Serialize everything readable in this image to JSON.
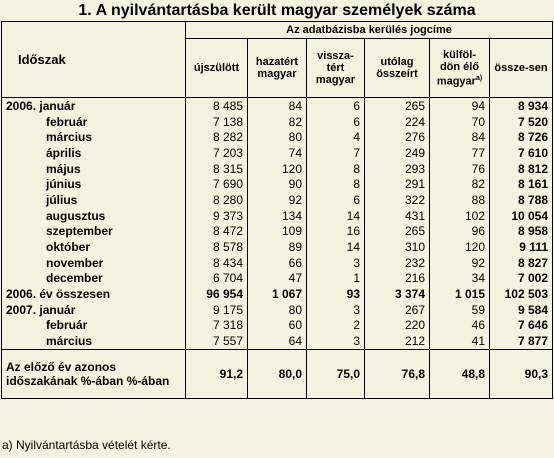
{
  "title": "1. A nyilvántartásba került magyar személyek száma",
  "header": {
    "period": "Időszak",
    "group": "Az adatbázisba kerülés jogcíme",
    "columns": [
      "újszülött",
      "hazatért magyar",
      "vissza-tért magyar",
      "utólag összeírt",
      "külföl-dön élő magyar",
      "össze-sen"
    ],
    "footnote_mark": "a)"
  },
  "rows": [
    {
      "label": "2006. január",
      "cells": [
        "8 485",
        "84",
        "6",
        "265",
        "94",
        "8 934"
      ],
      "indent": false
    },
    {
      "label": "február",
      "cells": [
        "7 138",
        "82",
        "6",
        "224",
        "70",
        "7 520"
      ],
      "indent": true
    },
    {
      "label": "március",
      "cells": [
        "8 282",
        "80",
        "4",
        "276",
        "84",
        "8 726"
      ],
      "indent": true
    },
    {
      "label": "április",
      "cells": [
        "7 203",
        "74",
        "7",
        "249",
        "77",
        "7 610"
      ],
      "indent": true
    },
    {
      "label": "május",
      "cells": [
        "8 315",
        "120",
        "8",
        "293",
        "76",
        "8 812"
      ],
      "indent": true
    },
    {
      "label": "június",
      "cells": [
        "7 690",
        "90",
        "8",
        "291",
        "82",
        "8 161"
      ],
      "indent": true
    },
    {
      "label": "július",
      "cells": [
        "8 280",
        "92",
        "6",
        "322",
        "88",
        "8 788"
      ],
      "indent": true
    },
    {
      "label": "augusztus",
      "cells": [
        "9 373",
        "134",
        "14",
        "431",
        "102",
        "10 054"
      ],
      "indent": true
    },
    {
      "label": "szeptember",
      "cells": [
        "8 472",
        "109",
        "16",
        "265",
        "96",
        "8 958"
      ],
      "indent": true
    },
    {
      "label": "október",
      "cells": [
        "8 578",
        "89",
        "14",
        "310",
        "120",
        "9 111"
      ],
      "indent": true
    },
    {
      "label": "november",
      "cells": [
        "8 434",
        "66",
        "3",
        "232",
        "92",
        "8 827"
      ],
      "indent": true
    },
    {
      "label": "december",
      "cells": [
        "6 704",
        "47",
        "1",
        "216",
        "34",
        "7 002"
      ],
      "indent": true
    }
  ],
  "total_row": {
    "label": "2006. év összesen",
    "cells": [
      "96 954",
      "1 067",
      "93",
      "3 374",
      "1 015",
      "102 503"
    ]
  },
  "rows2007": [
    {
      "label": "2007. január",
      "cells": [
        "9 175",
        "80",
        "3",
        "267",
        "59",
        "9 584"
      ],
      "indent": false
    },
    {
      "label": "február",
      "cells": [
        "7 318",
        "60",
        "2",
        "220",
        "46",
        "7 646"
      ],
      "indent": true
    },
    {
      "label": "március",
      "cells": [
        "7 557",
        "64",
        "3",
        "212",
        "41",
        "7 877"
      ],
      "indent": true
    }
  ],
  "pct_row": {
    "label": "Az előző év azonos időszakának %-ában %-ában",
    "cells": [
      "91,2",
      "80,0",
      "75,0",
      "76,8",
      "48,8",
      "90,3"
    ]
  },
  "footnote": "a) Nyilvántartásba vételét kérte."
}
